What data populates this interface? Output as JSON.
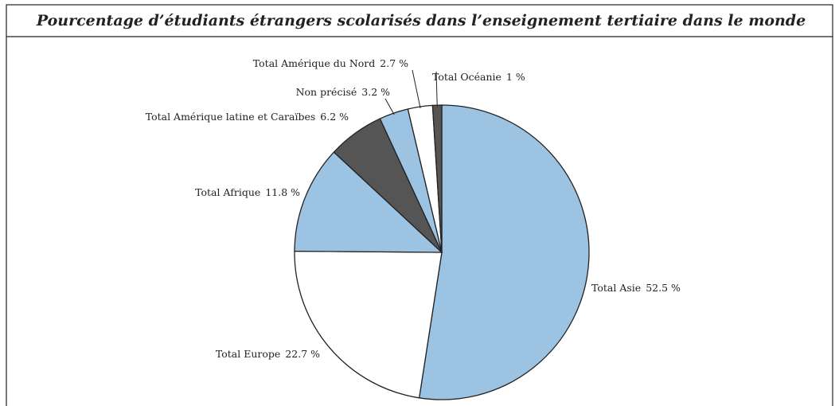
{
  "chart_data": {
    "type": "pie",
    "title": "Pourcentage d’étudiants étrangers scolarisés dans l’enseignement tertiaire dans le monde",
    "categories": [
      "Total Asie",
      "Total Europe",
      "Total Afrique",
      "Total Amérique latine et Caraïbes",
      "Non précisé",
      "Total Amérique du Nord",
      "Total Océanie"
    ],
    "values": [
      52.5,
      22.7,
      11.8,
      6.2,
      3.2,
      2.7,
      1
    ],
    "value_labels": [
      "52.5 %",
      "22.7 %",
      "11.8 %",
      "6.2 %",
      "3.2 %",
      "2.7 %",
      "1 %"
    ],
    "colors": [
      "#9dc3e2",
      "#ffffff",
      "#9dc3e2",
      "#555555",
      "#9dc3e2",
      "#ffffff",
      "#555555"
    ]
  }
}
